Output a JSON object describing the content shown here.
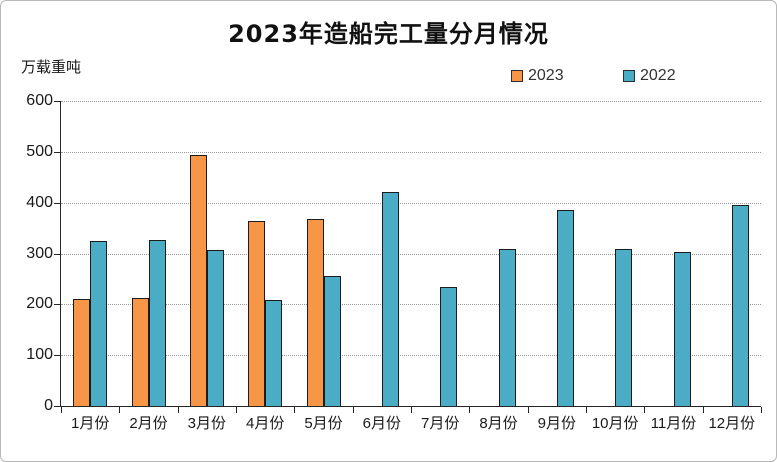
{
  "chart_data": {
    "type": "bar",
    "title": "2023年造船完工量分月情况",
    "ylabel": "万载重吨",
    "xlabel": "",
    "ylim": [
      0,
      600
    ],
    "ytick_step": 100,
    "grid": "horizontal-dotted",
    "legend_position": "top-right",
    "categories": [
      "1月份",
      "2月份",
      "3月份",
      "4月份",
      "5月份",
      "6月份",
      "7月份",
      "8月份",
      "9月份",
      "10月份",
      "11月份",
      "12月份"
    ],
    "series": [
      {
        "name": "2023",
        "color": "#F79646",
        "values": [
          211,
          212,
          493,
          363,
          367,
          null,
          null,
          null,
          null,
          null,
          null,
          null
        ]
      },
      {
        "name": "2022",
        "color": "#4BACC6",
        "values": [
          325,
          327,
          307,
          209,
          255,
          421,
          235,
          308,
          385,
          308,
          302,
          395
        ]
      }
    ]
  },
  "colors": {
    "bar_border": "#1c1c1c",
    "axis": "#262626",
    "gridline": "#979797",
    "frame_border": "#b9b9b9",
    "background": "#ffffff"
  }
}
